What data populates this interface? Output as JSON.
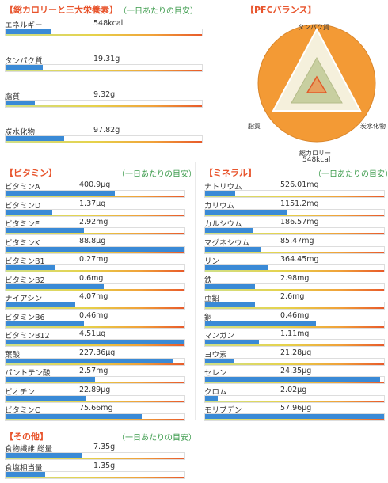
{
  "energy": {
    "title": "【総カロリーと三大栄養素】",
    "note": "（一日あたりの目安）",
    "items": [
      {
        "label": "エネルギー",
        "value": "548kcal",
        "fraction": 0.23
      },
      {
        "label": "タンパク質",
        "value": "19.31g",
        "fraction": 0.19
      },
      {
        "label": "脂質",
        "value": "9.32g",
        "fraction": 0.15
      },
      {
        "label": "炭水化物",
        "value": "97.82g",
        "fraction": 0.3
      }
    ]
  },
  "pfc": {
    "title": "【PFCバランス】",
    "top_label": "タンパク質",
    "left_label": "脂質",
    "right_label": "炭水化物",
    "bottom_label": "総カロリー",
    "bottom_value": "548kcal",
    "colors": {
      "circle": "#f39a35",
      "triangle": "#c8cfa0",
      "inner": "#e05a2a"
    }
  },
  "vitamins": {
    "title": "【ビタミン】",
    "note": "（一日あたりの目安）",
    "items": [
      {
        "label": "ビタミンA",
        "value": "400.9μg",
        "fraction": 0.61
      },
      {
        "label": "ビタミンD",
        "value": "1.37μg",
        "fraction": 0.26
      },
      {
        "label": "ビタミンE",
        "value": "2.92mg",
        "fraction": 0.44
      },
      {
        "label": "ビタミンK",
        "value": "88.8μg",
        "fraction": 1.0
      },
      {
        "label": "ビタミンB1",
        "value": "0.27mg",
        "fraction": 0.28
      },
      {
        "label": "ビタミンB2",
        "value": "0.6mg",
        "fraction": 0.55
      },
      {
        "label": "ナイアシン",
        "value": "4.07mg",
        "fraction": 0.39
      },
      {
        "label": "ビタミンB6",
        "value": "0.46mg",
        "fraction": 0.44
      },
      {
        "label": "ビタミンB12",
        "value": "4.51μg",
        "fraction": 1.0
      },
      {
        "label": "葉酸",
        "value": "227.36μg",
        "fraction": 0.94
      },
      {
        "label": "パントテン酸",
        "value": "2.57mg",
        "fraction": 0.5
      },
      {
        "label": "ビオチン",
        "value": "22.89μg",
        "fraction": 0.45
      },
      {
        "label": "ビタミンC",
        "value": "75.66mg",
        "fraction": 0.76
      }
    ]
  },
  "minerals": {
    "title": "【ミネラル】",
    "note": "（一日あたりの目安）",
    "items": [
      {
        "label": "ナトリウム",
        "value": "526.01mg",
        "fraction": 0.17
      },
      {
        "label": "カリウム",
        "value": "1151.2mg",
        "fraction": 0.46
      },
      {
        "label": "カルシウム",
        "value": "186.57mg",
        "fraction": 0.27
      },
      {
        "label": "マグネシウム",
        "value": "85.47mg",
        "fraction": 0.31
      },
      {
        "label": "リン",
        "value": "364.45mg",
        "fraction": 0.35
      },
      {
        "label": "鉄",
        "value": "2.98mg",
        "fraction": 0.28
      },
      {
        "label": "亜鉛",
        "value": "2.6mg",
        "fraction": 0.28
      },
      {
        "label": "銅",
        "value": "0.46mg",
        "fraction": 0.62
      },
      {
        "label": "マンガン",
        "value": "1.11mg",
        "fraction": 0.3
      },
      {
        "label": "ヨウ素",
        "value": "21.28μg",
        "fraction": 0.16
      },
      {
        "label": "セレン",
        "value": "24.35μg",
        "fraction": 0.98
      },
      {
        "label": "クロム",
        "value": "2.02μg",
        "fraction": 0.07
      },
      {
        "label": "モリブデン",
        "value": "57.96μg",
        "fraction": 1.0
      }
    ]
  },
  "others": {
    "title": "【その他】",
    "note": "（一日あたりの目安）",
    "items": [
      {
        "label": "食物繊維 総量",
        "value": "7.35g",
        "fraction": 0.43
      },
      {
        "label": "食塩相当量",
        "value": "1.35g",
        "fraction": 0.22
      }
    ]
  }
}
